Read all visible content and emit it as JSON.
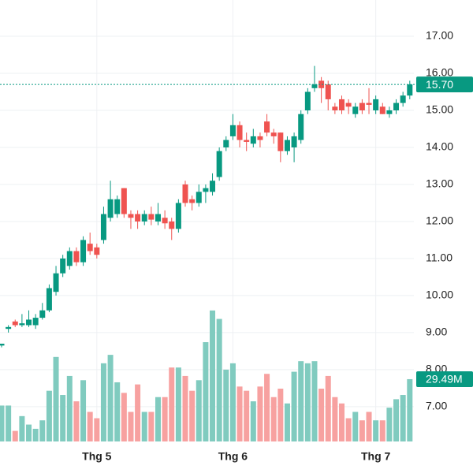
{
  "chart_data": {
    "type": "candlestick",
    "categories": [
      null,
      null,
      null,
      null,
      null,
      null,
      null,
      null,
      null,
      null,
      null,
      null,
      null,
      null,
      "Thg 5",
      null,
      null,
      null,
      null,
      null,
      null,
      null,
      null,
      null,
      null,
      null,
      null,
      null,
      null,
      null,
      null,
      null,
      null,
      null,
      "Thg 6",
      null,
      null,
      null,
      null,
      null,
      null,
      null,
      null,
      null,
      null,
      null,
      null,
      null,
      null,
      null,
      null,
      null,
      null,
      null,
      null,
      "Thg 7",
      null,
      null,
      null,
      null,
      null
    ],
    "open": [
      8.65,
      9.1,
      9.3,
      9.2,
      9.2,
      9.2,
      9.4,
      9.6,
      10.1,
      10.6,
      10.8,
      11.2,
      10.9,
      11.4,
      11.3,
      11.5,
      12.1,
      12.2,
      12.9,
      12.2,
      12.2,
      12.0,
      12.2,
      12.0,
      12.1,
      12.0,
      11.8,
      13.0,
      12.6,
      12.5,
      12.8,
      12.8,
      13.2,
      14.0,
      14.3,
      14.6,
      14.2,
      14.1,
      14.3,
      14.7,
      14.4,
      14.4,
      13.9,
      14.0,
      14.2,
      15.0,
      15.6,
      15.8,
      15.7,
      15.1,
      15.3,
      15.2,
      14.9,
      15.2,
      15.2,
      15.0,
      15.1,
      14.9,
      15.0,
      15.2,
      15.4
    ],
    "high": [
      8.7,
      9.2,
      9.35,
      9.5,
      9.6,
      9.5,
      9.8,
      10.3,
      10.8,
      11.1,
      11.3,
      11.3,
      11.6,
      11.7,
      11.4,
      12.4,
      13.1,
      12.7,
      12.9,
      12.3,
      12.3,
      12.3,
      12.4,
      12.5,
      12.3,
      12.1,
      12.6,
      13.1,
      12.7,
      13.0,
      13.0,
      13.3,
      14.0,
      14.3,
      14.9,
      14.7,
      14.4,
      14.5,
      14.4,
      14.9,
      14.5,
      14.4,
      14.3,
      14.4,
      15.0,
      15.6,
      16.2,
      15.9,
      15.8,
      15.2,
      15.4,
      15.3,
      15.2,
      15.3,
      15.6,
      15.4,
      15.2,
      15.1,
      15.3,
      15.5,
      15.8
    ],
    "low": [
      8.6,
      9.0,
      9.15,
      9.15,
      9.15,
      9.1,
      9.35,
      9.55,
      10.0,
      10.5,
      10.7,
      10.8,
      10.8,
      11.1,
      11.0,
      11.4,
      12.0,
      12.1,
      12.1,
      11.8,
      11.8,
      11.9,
      11.9,
      11.9,
      11.8,
      11.5,
      11.7,
      12.4,
      12.3,
      12.4,
      12.5,
      12.7,
      13.1,
      13.9,
      14.2,
      14.0,
      13.9,
      14.0,
      14.0,
      14.3,
      14.1,
      13.6,
      13.8,
      13.6,
      14.1,
      14.9,
      15.5,
      15.2,
      15.0,
      14.9,
      14.9,
      14.9,
      14.8,
      14.9,
      14.9,
      14.9,
      14.9,
      14.8,
      14.9,
      15.1,
      15.3
    ],
    "close": [
      8.7,
      9.15,
      9.2,
      9.25,
      9.35,
      9.4,
      9.6,
      10.2,
      10.6,
      11.0,
      11.2,
      10.9,
      11.5,
      11.2,
      11.1,
      12.2,
      12.6,
      12.6,
      12.2,
      12.1,
      12.0,
      12.2,
      12.05,
      12.2,
      11.95,
      11.8,
      12.5,
      12.5,
      12.5,
      12.8,
      12.9,
      13.1,
      13.9,
      14.2,
      14.6,
      14.2,
      14.15,
      14.3,
      14.2,
      14.4,
      14.3,
      13.9,
      14.2,
      14.3,
      14.9,
      15.5,
      15.7,
      15.6,
      15.3,
      15.0,
      15.0,
      15.1,
      15.1,
      15.0,
      15.15,
      15.3,
      14.9,
      15.0,
      15.2,
      15.4,
      15.7
    ],
    "volume": [
      17,
      17,
      5,
      12,
      8,
      6,
      10,
      24,
      40,
      22,
      31,
      19,
      29,
      14,
      11,
      37,
      41,
      28,
      23,
      14,
      27,
      14,
      14,
      21,
      21,
      35,
      35,
      31,
      24,
      29,
      47,
      62,
      58,
      34,
      37,
      26,
      24,
      19,
      26,
      32,
      21,
      25,
      18,
      33,
      38,
      37,
      38,
      25,
      31,
      21,
      18,
      11,
      14,
      10,
      14,
      10,
      10,
      16,
      20,
      22,
      29.49
    ],
    "up_color": "#089981",
    "down_color": "#ef5350",
    "volume_up_color": "#80cbbf",
    "volume_down_color": "#f7a1a0",
    "ylim": [
      6.06,
      17.98
    ],
    "yticks": [
      {
        "value": 7,
        "label": "7.00"
      },
      {
        "value": 8,
        "label": "8.00"
      },
      {
        "value": 9,
        "label": "9.00"
      },
      {
        "value": 10,
        "label": "10.00"
      },
      {
        "value": 11,
        "label": "11.00"
      },
      {
        "value": 12,
        "label": "12.00"
      },
      {
        "value": 13,
        "label": "13.00"
      },
      {
        "value": 14,
        "label": "14.00"
      },
      {
        "value": 15,
        "label": "15.00"
      },
      {
        "value": 16,
        "label": "16.00"
      },
      {
        "value": 17,
        "label": "17.00"
      }
    ],
    "volume_lim": [
      0,
      100
    ],
    "last_price": {
      "value": 15.7,
      "label": "15.70"
    },
    "last_volume": {
      "value": 29.49,
      "label": "29.49M"
    },
    "grid": true
  }
}
